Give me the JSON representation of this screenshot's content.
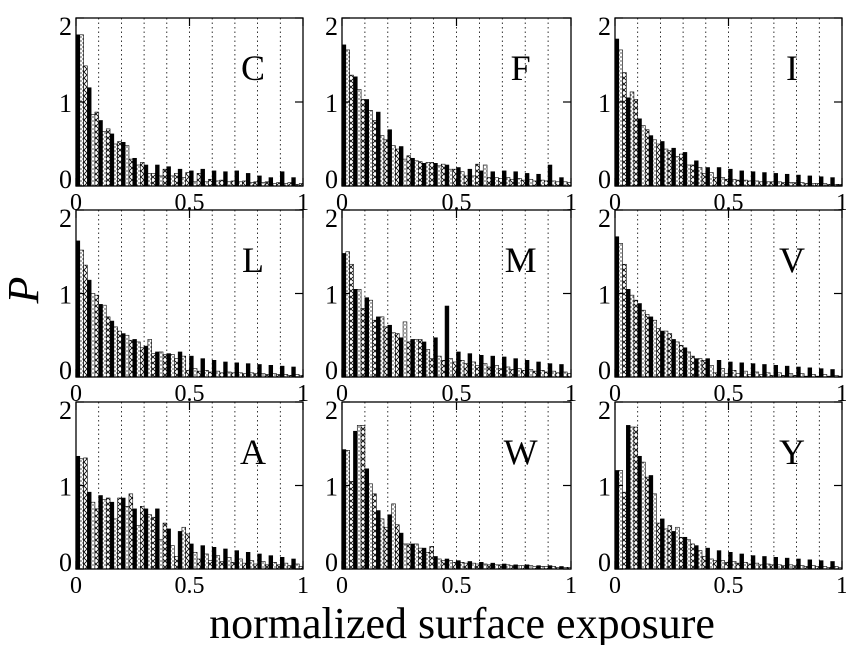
{
  "figure": {
    "ylabel": "P",
    "xlabel": "normalized surface exposure"
  },
  "chart_data": {
    "type": "bar",
    "x_bins": [
      0.025,
      0.075,
      0.125,
      0.175,
      0.225,
      0.275,
      0.325,
      0.375,
      0.425,
      0.475,
      0.525,
      0.575,
      0.625,
      0.675,
      0.725,
      0.775,
      0.825,
      0.875,
      0.925,
      0.975
    ],
    "xlim": [
      0,
      1
    ],
    "ylim": [
      0,
      2
    ],
    "x_ticks": [
      "0",
      "0.5",
      "1"
    ],
    "y_ticks": [
      "0",
      "1",
      "2"
    ],
    "series_styles": [
      "solid-black",
      "dotted",
      "crosshatched"
    ],
    "panels": [
      {
        "label": "C",
        "series": [
          {
            "values": [
              1.8,
              1.17,
              0.78,
              0.62,
              0.52,
              0.33,
              0.25,
              0.25,
              0.23,
              0.2,
              0.18,
              0.2,
              0.18,
              0.17,
              0.18,
              0.15,
              0.12,
              0.1,
              0.17,
              0.1
            ]
          },
          {
            "values": [
              1.8,
              0.85,
              0.65,
              0.5,
              0.48,
              0.25,
              0.15,
              0.12,
              0.12,
              0.1,
              0.05,
              0.05,
              0.06,
              0.05,
              0.05,
              0.04,
              0.04,
              0.03,
              0.03,
              0.02
            ]
          },
          {
            "values": [
              1.43,
              0.88,
              0.68,
              0.53,
              0.32,
              0.28,
              0.15,
              0.2,
              0.15,
              0.16,
              0.15,
              0.08,
              0.07,
              0.06,
              0.06,
              0.05,
              0.05,
              0.04,
              0.04,
              0.03
            ]
          }
        ]
      },
      {
        "label": "F",
        "series": [
          {
            "values": [
              1.68,
              1.3,
              1.03,
              0.88,
              0.67,
              0.47,
              0.33,
              0.27,
              0.27,
              0.25,
              0.22,
              0.2,
              0.18,
              0.17,
              0.18,
              0.17,
              0.15,
              0.14,
              0.25,
              0.1
            ]
          },
          {
            "values": [
              1.62,
              1.15,
              0.9,
              0.6,
              0.48,
              0.32,
              0.3,
              0.28,
              0.24,
              0.2,
              0.17,
              0.12,
              0.25,
              0.1,
              0.1,
              0.09,
              0.08,
              0.07,
              0.06,
              0.05
            ]
          },
          {
            "values": [
              1.32,
              1.03,
              0.78,
              0.55,
              0.44,
              0.36,
              0.29,
              0.28,
              0.26,
              0.2,
              0.12,
              0.26,
              0.1,
              0.09,
              0.08,
              0.07,
              0.06,
              0.06,
              0.05,
              0.04
            ]
          }
        ]
      },
      {
        "label": "I",
        "series": [
          {
            "values": [
              1.75,
              1.05,
              0.8,
              0.6,
              0.53,
              0.45,
              0.4,
              0.3,
              0.22,
              0.22,
              0.2,
              0.18,
              0.17,
              0.16,
              0.15,
              0.14,
              0.13,
              0.12,
              0.11,
              0.1
            ]
          },
          {
            "values": [
              1.62,
              1.12,
              0.72,
              0.55,
              0.44,
              0.35,
              0.25,
              0.22,
              0.16,
              0.1,
              0.08,
              0.07,
              0.06,
              0.05,
              0.05,
              0.04,
              0.04,
              0.03,
              0.03,
              0.02
            ]
          },
          {
            "values": [
              1.35,
              1.03,
              0.67,
              0.5,
              0.42,
              0.38,
              0.25,
              0.15,
              0.1,
              0.08,
              0.07,
              0.06,
              0.05,
              0.05,
              0.04,
              0.04,
              0.03,
              0.03,
              0.02,
              0.02
            ]
          }
        ]
      },
      {
        "label": "L",
        "series": [
          {
            "values": [
              1.63,
              1.16,
              0.87,
              0.67,
              0.52,
              0.45,
              0.37,
              0.3,
              0.28,
              0.3,
              0.25,
              0.22,
              0.2,
              0.18,
              0.17,
              0.16,
              0.15,
              0.14,
              0.13,
              0.12
            ]
          },
          {
            "values": [
              1.52,
              1.0,
              0.86,
              0.6,
              0.5,
              0.42,
              0.45,
              0.3,
              0.27,
              0.25,
              0.1,
              0.08,
              0.07,
              0.06,
              0.05,
              0.05,
              0.04,
              0.04,
              0.03,
              0.03
            ]
          },
          {
            "values": [
              1.34,
              0.98,
              0.72,
              0.55,
              0.44,
              0.35,
              0.28,
              0.27,
              0.22,
              0.08,
              0.07,
              0.06,
              0.05,
              0.05,
              0.04,
              0.04,
              0.03,
              0.03,
              0.02,
              0.02
            ]
          }
        ]
      },
      {
        "label": "M",
        "series": [
          {
            "values": [
              1.48,
              1.05,
              0.95,
              0.72,
              0.62,
              0.47,
              0.45,
              0.42,
              0.47,
              0.85,
              0.3,
              0.28,
              0.26,
              0.25,
              0.24,
              0.22,
              0.2,
              0.18,
              0.16,
              0.15
            ]
          },
          {
            "values": [
              1.5,
              1.05,
              0.92,
              0.72,
              0.53,
              0.66,
              0.45,
              0.33,
              0.25,
              0.22,
              0.2,
              0.18,
              0.16,
              0.14,
              0.12,
              0.1,
              0.09,
              0.08,
              0.07,
              0.06
            ]
          },
          {
            "values": [
              1.35,
              0.82,
              0.68,
              0.6,
              0.52,
              0.42,
              0.45,
              0.22,
              0.2,
              0.18,
              0.16,
              0.14,
              0.12,
              0.1,
              0.09,
              0.08,
              0.07,
              0.06,
              0.05,
              0.04
            ]
          }
        ]
      },
      {
        "label": "V",
        "series": [
          {
            "values": [
              1.68,
              1.05,
              0.88,
              0.72,
              0.55,
              0.45,
              0.35,
              0.22,
              0.22,
              0.2,
              0.18,
              0.17,
              0.16,
              0.15,
              0.14,
              0.13,
              0.12,
              0.11,
              0.1,
              0.09
            ]
          },
          {
            "values": [
              1.6,
              0.98,
              0.8,
              0.68,
              0.55,
              0.42,
              0.3,
              0.22,
              0.14,
              0.1,
              0.08,
              0.07,
              0.06,
              0.05,
              0.05,
              0.04,
              0.04,
              0.03,
              0.03,
              0.02
            ]
          },
          {
            "values": [
              1.35,
              0.92,
              0.75,
              0.58,
              0.52,
              0.38,
              0.25,
              0.2,
              0.05,
              0.04,
              0.04,
              0.03,
              0.03,
              0.02,
              0.02,
              0.02,
              0.01,
              0.01,
              0.01,
              0.01
            ]
          }
        ]
      },
      {
        "label": "A",
        "series": [
          {
            "values": [
              1.35,
              0.92,
              0.88,
              0.8,
              0.85,
              0.72,
              0.72,
              0.72,
              0.48,
              0.45,
              0.3,
              0.28,
              0.26,
              0.24,
              0.22,
              0.2,
              0.18,
              0.16,
              0.14,
              0.12
            ]
          },
          {
            "values": [
              1.32,
              0.8,
              0.83,
              0.6,
              0.75,
              0.52,
              0.65,
              0.35,
              0.28,
              0.5,
              0.2,
              0.18,
              0.16,
              0.14,
              0.12,
              0.1,
              0.09,
              0.08,
              0.07,
              0.06
            ]
          },
          {
            "values": [
              1.33,
              0.72,
              0.85,
              0.85,
              0.9,
              0.75,
              0.62,
              0.55,
              0.15,
              0.42,
              0.12,
              0.1,
              0.09,
              0.08,
              0.07,
              0.06,
              0.05,
              0.05,
              0.04,
              0.03
            ]
          }
        ]
      },
      {
        "label": "W",
        "series": [
          {
            "values": [
              1.43,
              1.65,
              1.2,
              0.7,
              0.65,
              0.43,
              0.3,
              0.25,
              0.15,
              0.12,
              0.1,
              0.09,
              0.08,
              0.07,
              0.06,
              0.05,
              0.05,
              0.04,
              0.04,
              0.03
            ]
          },
          {
            "values": [
              1.42,
              1.72,
              1.02,
              0.6,
              0.78,
              0.3,
              0.3,
              0.2,
              0.12,
              0.1,
              0.08,
              0.07,
              0.06,
              0.05,
              0.05,
              0.04,
              0.04,
              0.03,
              0.03,
              0.02
            ]
          },
          {
            "values": [
              1.05,
              1.72,
              0.9,
              0.5,
              0.53,
              0.3,
              0.25,
              0.27,
              0.1,
              0.08,
              0.07,
              0.06,
              0.05,
              0.05,
              0.04,
              0.04,
              0.03,
              0.03,
              0.02,
              0.02
            ]
          }
        ]
      },
      {
        "label": "Y",
        "series": [
          {
            "values": [
              1.18,
              1.72,
              1.35,
              1.12,
              0.6,
              0.45,
              0.38,
              0.28,
              0.25,
              0.22,
              0.2,
              0.18,
              0.16,
              0.15,
              0.14,
              0.13,
              0.12,
              0.11,
              0.1,
              0.09
            ]
          },
          {
            "values": [
              1.18,
              1.7,
              1.28,
              0.9,
              0.48,
              0.5,
              0.35,
              0.22,
              0.12,
              0.1,
              0.09,
              0.08,
              0.07,
              0.06,
              0.05,
              0.05,
              0.04,
              0.04,
              0.03,
              0.03
            ]
          },
          {
            "values": [
              0.92,
              1.7,
              1.1,
              0.55,
              0.52,
              0.38,
              0.3,
              0.15,
              0.1,
              0.08,
              0.07,
              0.06,
              0.05,
              0.05,
              0.04,
              0.04,
              0.03,
              0.03,
              0.02,
              0.02
            ]
          }
        ]
      }
    ]
  }
}
